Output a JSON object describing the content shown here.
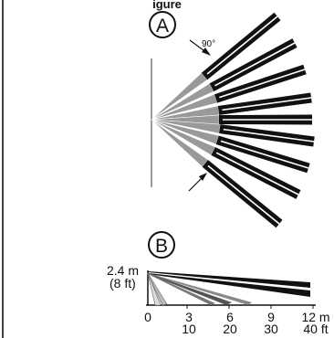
{
  "header_partial_text": "igure",
  "view_a": {
    "callout": "A",
    "angle_label": "90°"
  },
  "view_b": {
    "callout": "B",
    "height_m": "2.4 m",
    "height_ft": "(8 ft)",
    "axis_m": [
      "0",
      "3",
      "6",
      "9",
      "12 m"
    ],
    "axis_ft": [
      "10",
      "20",
      "30",
      "40 ft"
    ]
  },
  "colors": {
    "beam_dark": "#111111",
    "beam_gray": "#999999",
    "wall": "#9a9a9a",
    "ink": "#111111"
  }
}
